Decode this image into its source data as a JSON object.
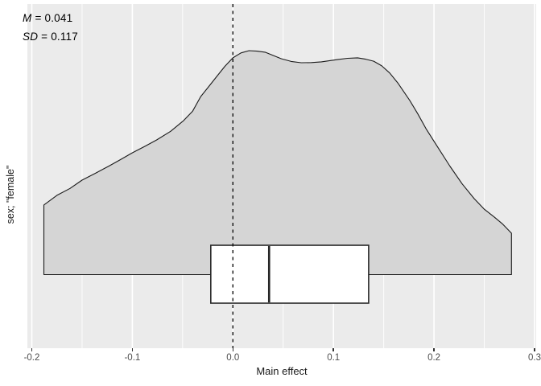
{
  "figure": {
    "annotation": {
      "m_label": "M",
      "m_value": "= 0.041",
      "sd_label": "SD",
      "sd_value": "= 0.117"
    },
    "y_axis_label": "sex; \"female\"",
    "x_axis_label": "Main effect"
  },
  "chart_data": {
    "type": "area",
    "subtype": "density-curve-with-boxplot",
    "title": "",
    "xlabel": "Main effect",
    "ylabel": "sex; \"female\"",
    "annotations": [
      "M = 0.041",
      "SD = 0.117"
    ],
    "mean": 0.041,
    "sd": 0.117,
    "x_ticks": [
      -0.2,
      -0.1,
      0.0,
      0.1,
      0.2,
      0.3
    ],
    "x_tick_labels": [
      "-0.2",
      "-0.1",
      "0.0",
      "0.1",
      "0.2",
      "0.3"
    ],
    "xlim": [
      -0.2044,
      0.3016
    ],
    "grid": "vertical major and minor white gridlines on gray panel",
    "legend": "none",
    "reference_line_x": 0.0,
    "reference_line_style": "dashed",
    "density": {
      "x": [
        -0.188,
        -0.175,
        -0.162,
        -0.15,
        -0.137,
        -0.124,
        -0.112,
        -0.1,
        -0.088,
        -0.076,
        -0.062,
        -0.049,
        -0.04,
        -0.032,
        -0.024,
        -0.016,
        -0.008,
        0.0,
        0.008,
        0.016,
        0.024,
        0.032,
        0.048,
        0.058,
        0.068,
        0.078,
        0.088,
        0.104,
        0.114,
        0.124,
        0.132,
        0.14,
        0.148,
        0.156,
        0.164,
        0.176,
        0.184,
        0.192,
        0.204,
        0.216,
        0.228,
        0.24,
        0.25,
        0.26,
        0.268,
        0.277
      ],
      "y_relative": [
        0.311,
        0.354,
        0.385,
        0.422,
        0.452,
        0.483,
        0.513,
        0.544,
        0.572,
        0.601,
        0.64,
        0.688,
        0.73,
        0.795,
        0.84,
        0.885,
        0.93,
        0.968,
        0.99,
        1.0,
        0.998,
        0.993,
        0.964,
        0.952,
        0.946,
        0.947,
        0.95,
        0.96,
        0.966,
        0.968,
        0.962,
        0.953,
        0.932,
        0.9,
        0.856,
        0.777,
        0.717,
        0.652,
        0.567,
        0.483,
        0.405,
        0.339,
        0.292,
        0.257,
        0.227,
        0.185
      ]
    },
    "boxplot": {
      "q1": -0.022,
      "median": 0.036,
      "q3": 0.135,
      "whisker_min": -0.188,
      "whisker_max": 0.277
    },
    "colors": {
      "panel_bg": "#EBEBEB",
      "density_fill": "#D5D5D5",
      "line": "#1A1A1A",
      "grid": "#FFFFFF",
      "box_fill": "#FFFFFF",
      "box_stroke": "#262626",
      "tick_label": "#4D4D4D",
      "tick_mark": "#333333"
    }
  }
}
